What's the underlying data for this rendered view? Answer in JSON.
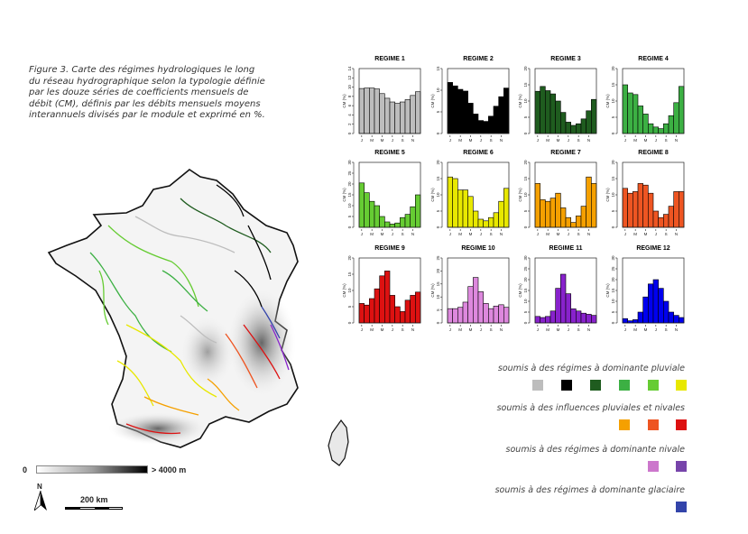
{
  "caption": "Figure 3. Carte des régimes hydrologiques le long du réseau hydrographique selon la typologie définie par les douze séries de coefficients mensuels de débit (CM), définis par les débits mensuels moyens interannuels divisés par le module et exprimé en %.",
  "elevation_legend": {
    "min_label": "0",
    "max_label": "> 4000 m"
  },
  "north_label": "N",
  "scale_label": "200 km",
  "legend_groups": [
    {
      "label": "soumis à des régimes à dominante pluviale",
      "colors": [
        "#bdbdbd",
        "#000000",
        "#1f5c1f",
        "#3cb043",
        "#66cc33",
        "#e8e800"
      ]
    },
    {
      "label": "soumis à des influences pluviales et nivales",
      "colors": [
        "#f5a000",
        "#ee5522",
        "#dd1111"
      ]
    },
    {
      "label": "soumis à des régimes à dominante nivale",
      "colors": [
        "#cc77cc",
        "#7744aa"
      ]
    },
    {
      "label": "soumis à des régimes à dominante glaciaire",
      "colors": [
        "#3344aa"
      ]
    }
  ],
  "chart_data": [
    {
      "type": "bar",
      "title": "REGIME 1",
      "ylabel": "CM (%)",
      "ylim": [
        0,
        14
      ],
      "yticks": [
        0,
        2,
        4,
        6,
        8,
        10,
        12,
        14
      ],
      "categories": [
        "J",
        "F",
        "M",
        "A",
        "M",
        "J",
        "J",
        "A",
        "S",
        "O",
        "N",
        "D"
      ],
      "xtick_labels": [
        "J",
        "M",
        "M",
        "J",
        "S",
        "N"
      ],
      "values": [
        9.7,
        9.8,
        9.8,
        9.6,
        8.6,
        7.6,
        6.8,
        6.5,
        6.8,
        7.3,
        8.2,
        9.0
      ],
      "color": "#bdbdbd"
    },
    {
      "type": "bar",
      "title": "REGIME 2",
      "ylabel": "CM (%)",
      "ylim": [
        0,
        15
      ],
      "yticks": [
        0,
        5,
        10,
        15
      ],
      "categories": [
        "J",
        "F",
        "M",
        "A",
        "M",
        "J",
        "J",
        "A",
        "S",
        "O",
        "N",
        "D"
      ],
      "xtick_labels": [
        "J",
        "M",
        "M",
        "J",
        "S",
        "N"
      ],
      "values": [
        11.8,
        11.0,
        10.2,
        9.8,
        7.0,
        4.5,
        3.0,
        2.8,
        4.0,
        6.3,
        8.5,
        10.5
      ],
      "color": "#000000"
    },
    {
      "type": "bar",
      "title": "REGIME 3",
      "ylabel": "CM (%)",
      "ylim": [
        0,
        20
      ],
      "yticks": [
        0,
        5,
        10,
        15,
        20
      ],
      "categories": [
        "J",
        "F",
        "M",
        "A",
        "M",
        "J",
        "J",
        "A",
        "S",
        "O",
        "N",
        "D"
      ],
      "xtick_labels": [
        "J",
        "M",
        "M",
        "J",
        "S",
        "N"
      ],
      "values": [
        13.0,
        14.5,
        13.2,
        12.2,
        10.0,
        6.5,
        3.5,
        2.5,
        3.0,
        4.5,
        7.0,
        10.5
      ],
      "color": "#1f5c1f"
    },
    {
      "type": "bar",
      "title": "REGIME 4",
      "ylabel": "CM (%)",
      "ylim": [
        0,
        20
      ],
      "yticks": [
        0,
        5,
        10,
        15,
        20
      ],
      "categories": [
        "J",
        "F",
        "M",
        "A",
        "M",
        "J",
        "J",
        "A",
        "S",
        "O",
        "N",
        "D"
      ],
      "xtick_labels": [
        "J",
        "M",
        "M",
        "J",
        "S",
        "N"
      ],
      "values": [
        15.0,
        12.5,
        12.0,
        8.5,
        6.0,
        3.0,
        2.0,
        1.5,
        3.0,
        5.5,
        9.5,
        14.5
      ],
      "color": "#3cb043"
    },
    {
      "type": "bar",
      "title": "REGIME 5",
      "ylabel": "CM (%)",
      "ylim": [
        0,
        30
      ],
      "yticks": [
        0,
        5,
        10,
        15,
        20,
        25,
        30
      ],
      "categories": [
        "J",
        "F",
        "M",
        "A",
        "M",
        "J",
        "J",
        "A",
        "S",
        "O",
        "N",
        "D"
      ],
      "xtick_labels": [
        "J",
        "M",
        "M",
        "J",
        "S",
        "N"
      ],
      "values": [
        20.5,
        16.0,
        12.0,
        10.0,
        5.0,
        2.5,
        1.5,
        2.0,
        4.5,
        6.0,
        9.5,
        15.0
      ],
      "color": "#66cc33"
    },
    {
      "type": "bar",
      "title": "REGIME 6",
      "ylabel": "CM (%)",
      "ylim": [
        0,
        20
      ],
      "yticks": [
        0,
        5,
        10,
        15,
        20
      ],
      "categories": [
        "J",
        "F",
        "M",
        "A",
        "M",
        "J",
        "J",
        "A",
        "S",
        "O",
        "N",
        "D"
      ],
      "xtick_labels": [
        "J",
        "M",
        "M",
        "J",
        "S",
        "N"
      ],
      "values": [
        15.5,
        15.0,
        11.5,
        11.5,
        9.5,
        5.0,
        2.5,
        2.0,
        3.0,
        4.5,
        8.0,
        12.0
      ],
      "color": "#e8e800"
    },
    {
      "type": "bar",
      "title": "REGIME 7",
      "ylabel": "CM (%)",
      "ylim": [
        0,
        20
      ],
      "yticks": [
        0,
        5,
        10,
        15,
        20
      ],
      "categories": [
        "J",
        "F",
        "M",
        "A",
        "M",
        "J",
        "J",
        "A",
        "S",
        "O",
        "N",
        "D"
      ],
      "xtick_labels": [
        "J",
        "M",
        "M",
        "J",
        "S",
        "N"
      ],
      "values": [
        13.5,
        8.5,
        8.0,
        9.0,
        10.5,
        6.0,
        3.0,
        1.5,
        3.5,
        6.5,
        15.5,
        13.5
      ],
      "color": "#f5a000"
    },
    {
      "type": "bar",
      "title": "REGIME 8",
      "ylabel": "CM (%)",
      "ylim": [
        0,
        20
      ],
      "yticks": [
        0,
        5,
        10,
        15,
        20
      ],
      "categories": [
        "J",
        "F",
        "M",
        "A",
        "M",
        "J",
        "J",
        "A",
        "S",
        "O",
        "N",
        "D"
      ],
      "xtick_labels": [
        "J",
        "M",
        "M",
        "J",
        "S",
        "N"
      ],
      "values": [
        12.0,
        10.5,
        11.0,
        13.5,
        13.0,
        10.5,
        5.0,
        3.0,
        4.0,
        6.5,
        11.0,
        11.0
      ],
      "color": "#ee5522"
    },
    {
      "type": "bar",
      "title": "REGIME 9",
      "ylabel": "CM (%)",
      "ylim": [
        0,
        20
      ],
      "yticks": [
        0,
        5,
        10,
        15,
        20
      ],
      "categories": [
        "J",
        "F",
        "M",
        "A",
        "M",
        "J",
        "J",
        "A",
        "S",
        "O",
        "N",
        "D"
      ],
      "xtick_labels": [
        "J",
        "M",
        "M",
        "J",
        "S",
        "N"
      ],
      "values": [
        6.0,
        5.5,
        7.5,
        10.5,
        14.5,
        16.0,
        8.5,
        5.0,
        3.5,
        7.0,
        8.5,
        9.5
      ],
      "color": "#dd1111"
    },
    {
      "type": "bar",
      "title": "REGIME 10",
      "ylabel": "CM (%)",
      "ylim": [
        0,
        25
      ],
      "yticks": [
        0,
        5,
        10,
        15,
        20,
        25
      ],
      "categories": [
        "J",
        "F",
        "M",
        "A",
        "M",
        "J",
        "J",
        "A",
        "S",
        "O",
        "N",
        "D"
      ],
      "xtick_labels": [
        "J",
        "M",
        "M",
        "J",
        "S",
        "N"
      ],
      "values": [
        5.5,
        5.5,
        6.0,
        8.0,
        14.0,
        17.5,
        12.0,
        7.5,
        5.5,
        6.5,
        7.0,
        6.0
      ],
      "color": "#dd88dd"
    },
    {
      "type": "bar",
      "title": "REGIME 11",
      "ylabel": "CM (%)",
      "ylim": [
        0,
        30
      ],
      "yticks": [
        0,
        5,
        10,
        15,
        20,
        25,
        30
      ],
      "categories": [
        "J",
        "F",
        "M",
        "A",
        "M",
        "J",
        "J",
        "A",
        "S",
        "O",
        "N",
        "D"
      ],
      "xtick_labels": [
        "J",
        "M",
        "M",
        "J",
        "S",
        "N"
      ],
      "values": [
        3.0,
        2.5,
        3.0,
        5.5,
        16.0,
        22.5,
        13.5,
        6.5,
        5.5,
        4.5,
        4.0,
        3.5
      ],
      "color": "#8822cc"
    },
    {
      "type": "bar",
      "title": "REGIME 12",
      "ylabel": "CM (%)",
      "ylim": [
        0,
        30
      ],
      "yticks": [
        0,
        5,
        10,
        15,
        20,
        25,
        30
      ],
      "categories": [
        "J",
        "F",
        "M",
        "A",
        "M",
        "J",
        "J",
        "A",
        "S",
        "O",
        "N",
        "D"
      ],
      "xtick_labels": [
        "J",
        "M",
        "M",
        "J",
        "S",
        "N"
      ],
      "values": [
        2.0,
        1.0,
        1.5,
        5.0,
        12.0,
        18.0,
        20.0,
        16.0,
        10.0,
        5.0,
        3.5,
        2.5
      ],
      "color": "#0000ee"
    }
  ]
}
